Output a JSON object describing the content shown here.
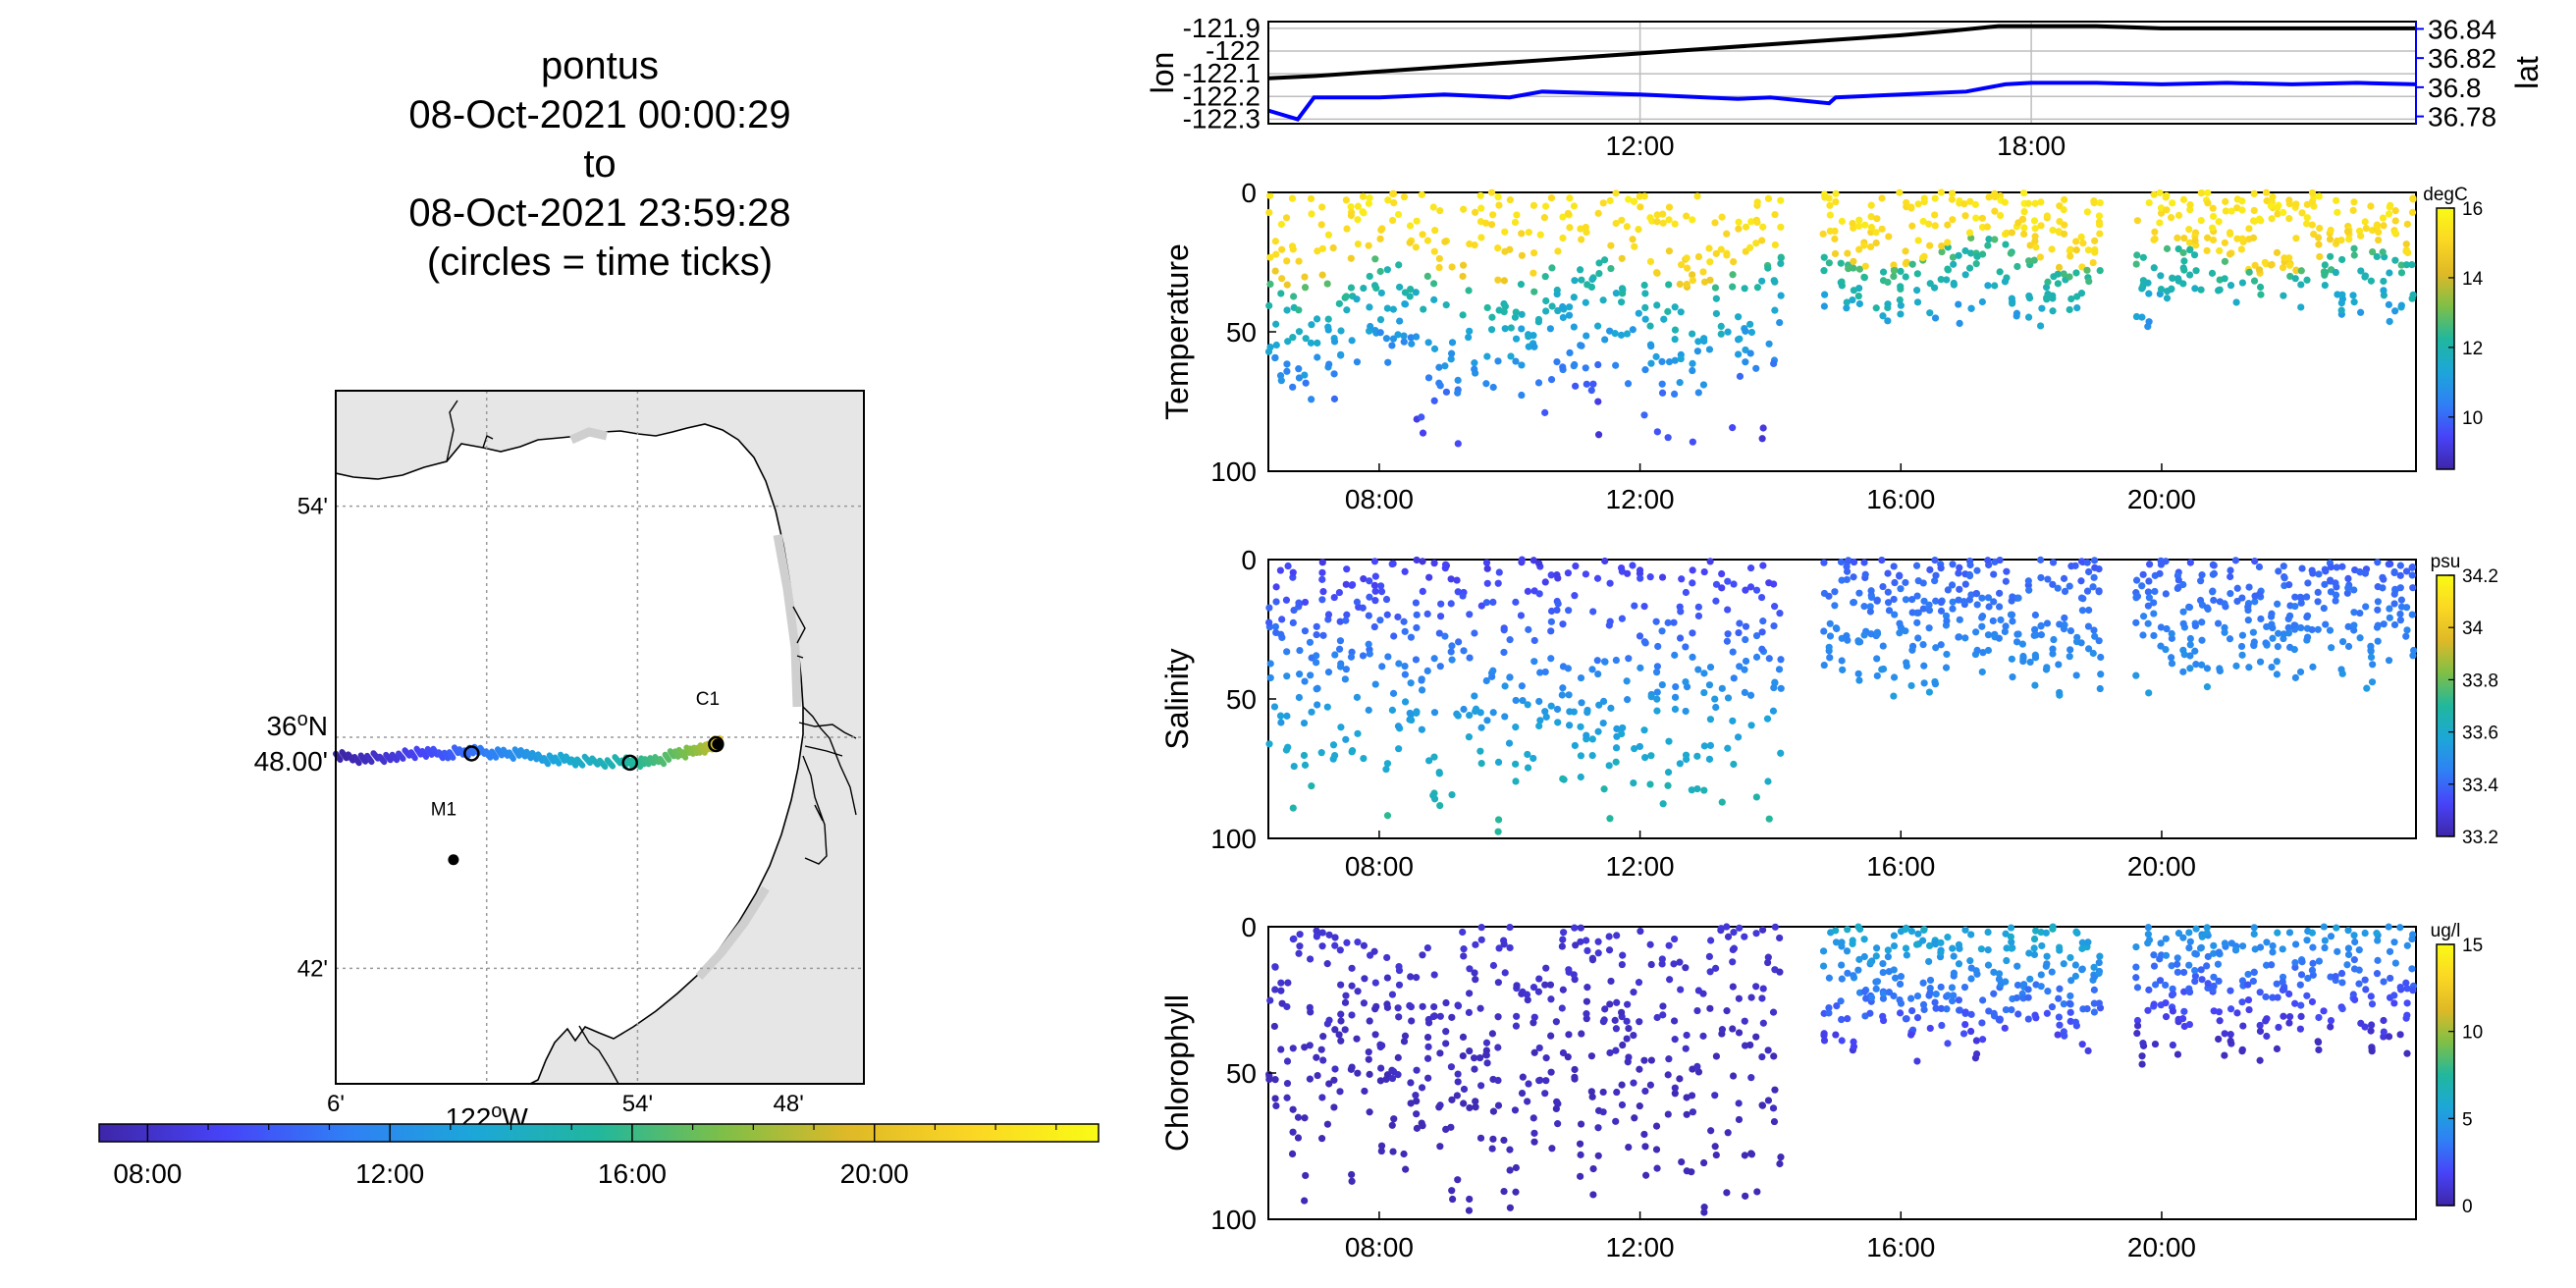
{
  "title": {
    "lines": [
      "pontus",
      "08-Oct-2021 00:00:29",
      "to",
      "08-Oct-2021 23:59:28",
      "(circles = time ticks)"
    ]
  },
  "colors": {
    "lon_line": "#000000",
    "lat_line": "#0000ff",
    "land": "#e6e6e6",
    "water": "#ffffff",
    "parula": [
      "#3e26a8",
      "#4743f8",
      "#2f80f5",
      "#1ca7d8",
      "#21b79d",
      "#7fbf47",
      "#dfb927",
      "#fbd724",
      "#f9fb15"
    ]
  },
  "chart_data": [
    {
      "type": "line",
      "panel": "position",
      "xlim_hours": [
        6.3,
        23.9
      ],
      "x_ticks": [
        "12:00",
        "18:00"
      ],
      "x_tick_hours": [
        12,
        18
      ],
      "series": [
        {
          "name": "lon",
          "axis": "left",
          "x_hours": [
            6.3,
            7.0,
            8.0,
            9.0,
            10.0,
            11.0,
            12.0,
            13.0,
            14.0,
            15.0,
            16.0,
            16.8,
            17.5,
            18.0,
            19.0,
            20.0,
            21.0,
            22.0,
            23.0,
            23.9
          ],
          "values": [
            -122.12,
            -122.11,
            -122.09,
            -122.07,
            -122.05,
            -122.03,
            -122.01,
            -121.99,
            -121.97,
            -121.95,
            -121.93,
            -121.91,
            -121.89,
            -121.89,
            -121.89,
            -121.9,
            -121.9,
            -121.9,
            -121.9,
            -121.9
          ]
        },
        {
          "name": "lat",
          "axis": "right",
          "x_hours": [
            6.3,
            6.75,
            7.0,
            8.0,
            9.0,
            10.0,
            10.5,
            12.0,
            13.5,
            14.0,
            14.9,
            15.0,
            16.0,
            17.0,
            17.6,
            18.0,
            19.0,
            20.0,
            21.0,
            22.0,
            23.0,
            23.9
          ],
          "values": [
            36.784,
            36.778,
            36.793,
            36.793,
            36.795,
            36.793,
            36.797,
            36.795,
            36.792,
            36.793,
            36.789,
            36.793,
            36.795,
            36.797,
            36.802,
            36.803,
            36.803,
            36.802,
            36.803,
            36.802,
            36.803,
            36.802
          ]
        }
      ],
      "ylabel_left": "lon",
      "ylabel_right": "lat",
      "ylim_left": [
        -122.32,
        -121.87
      ],
      "ylim_right": [
        36.775,
        36.845
      ],
      "left_ticks": [
        "-121.9",
        "-122",
        "-122.1",
        "-122.2",
        "-122.3"
      ],
      "left_tick_values": [
        -121.9,
        -122.0,
        -122.1,
        -122.2,
        -122.3
      ],
      "right_ticks": [
        "36.84",
        "36.82",
        "36.8",
        "36.78"
      ],
      "right_tick_values": [
        36.84,
        36.82,
        36.8,
        36.78
      ],
      "grid": true
    },
    {
      "type": "scatter",
      "panel": "temperature",
      "ylabel": "Temperature",
      "ylim": [
        0,
        100
      ],
      "y_reversed": true,
      "y_ticks": [
        "0",
        "50",
        "100"
      ],
      "y_tick_values": [
        0,
        50,
        100
      ],
      "xlim_hours": [
        6.3,
        23.9
      ],
      "x_ticks": [
        "08:00",
        "12:00",
        "16:00",
        "20:00"
      ],
      "x_tick_hours": [
        8,
        12,
        16,
        20
      ],
      "colorbar_label": "degC",
      "clim": [
        8.5,
        16
      ],
      "colorbar_ticks": [
        "16",
        "14",
        "12",
        "10"
      ],
      "colorbar_tick_values": [
        16,
        14,
        12,
        10
      ],
      "profile_hours": [
        6.3,
        14.2,
        14.8,
        19.1,
        19.6,
        23.9
      ],
      "profile_spacing_hours": 0.09,
      "max_depth_by_segment": [
        100,
        50,
        50
      ],
      "thermocline_depth": [
        28,
        22,
        24
      ],
      "surface_value": 15.5,
      "deep_value": 9.0
    },
    {
      "type": "scatter",
      "panel": "salinity",
      "ylabel": "Salinity",
      "ylim": [
        0,
        100
      ],
      "y_reversed": true,
      "y_ticks": [
        "0",
        "50",
        "100"
      ],
      "y_tick_values": [
        0,
        50,
        100
      ],
      "xlim_hours": [
        6.3,
        23.9
      ],
      "x_ticks": [
        "08:00",
        "12:00",
        "16:00",
        "20:00"
      ],
      "x_tick_hours": [
        8,
        12,
        16,
        20
      ],
      "colorbar_label": "psu",
      "clim": [
        33.2,
        34.2
      ],
      "colorbar_ticks": [
        "34.2",
        "34",
        "33.8",
        "33.6",
        "33.4",
        "33.2"
      ],
      "colorbar_tick_values": [
        34.2,
        34.0,
        33.8,
        33.6,
        33.4,
        33.2
      ],
      "profile_hours": [
        6.3,
        14.2,
        14.8,
        19.1,
        19.6,
        23.9
      ],
      "profile_spacing_hours": 0.09,
      "max_depth_by_segment": [
        100,
        50,
        50
      ],
      "surface_value": 33.35,
      "deep_value": 33.65
    },
    {
      "type": "scatter",
      "panel": "chlorophyll",
      "ylabel": "Chlorophyll",
      "ylim": [
        0,
        100
      ],
      "y_reversed": true,
      "y_ticks": [
        "0",
        "50",
        "100"
      ],
      "y_tick_values": [
        0,
        50,
        100
      ],
      "xlim_hours": [
        6.3,
        23.9
      ],
      "x_ticks": [
        "08:00",
        "12:00",
        "16:00",
        "20:00"
      ],
      "x_tick_hours": [
        8,
        12,
        16,
        20
      ],
      "colorbar_label": "ug/l",
      "clim": [
        0,
        15
      ],
      "colorbar_ticks": [
        "15",
        "10",
        "5",
        "0"
      ],
      "colorbar_tick_values": [
        15,
        10,
        5,
        0
      ],
      "profile_hours": [
        6.3,
        14.2,
        14.8,
        19.1,
        19.6,
        23.9
      ],
      "profile_spacing_hours": 0.09,
      "max_depth_by_segment": [
        100,
        50,
        50
      ],
      "surface_value": [
        1.0,
        6.0,
        5.0
      ],
      "deep_value": 0.5
    },
    {
      "type": "map",
      "panel": "track",
      "lon_lim": [
        -122.1,
        -121.75
      ],
      "lat_lim": [
        36.65,
        36.95
      ],
      "lon_ticks": [
        "6'",
        "54'",
        "48'"
      ],
      "lon_tick_values": [
        -122.1,
        -121.9,
        -121.8
      ],
      "lon_gridlines": [
        -122.0,
        -121.9
      ],
      "lon_center_label": [
        "122",
        "o",
        "W"
      ],
      "lat_ticks": [
        "54'",
        "42'"
      ],
      "lat_tick_values": [
        36.9,
        36.7
      ],
      "lat_gridlines": [
        36.9,
        36.8,
        36.7
      ],
      "lat_center_label": [
        "36",
        "o",
        "N",
        "48.00'"
      ],
      "stations": [
        {
          "name": "C1",
          "lon": -121.847,
          "lat": 36.797
        },
        {
          "name": "M1",
          "lon": -122.022,
          "lat": 36.747
        }
      ],
      "track": {
        "hours": [
          7.0,
          8.0,
          9.0,
          10.0,
          11.0,
          12.0,
          13.0,
          14.0,
          15.0,
          16.0,
          17.0,
          18.0,
          19.0,
          20.0,
          21.0
        ],
        "lon": [
          -122.1,
          -122.075,
          -122.05,
          -122.028,
          -122.008,
          -121.985,
          -121.962,
          -121.94,
          -121.91,
          -121.895,
          -121.875,
          -121.86,
          -121.85,
          -121.847,
          -121.845
        ],
        "lat": [
          36.792,
          36.791,
          36.793,
          36.793,
          36.794,
          36.793,
          36.791,
          36.79,
          36.789,
          36.789,
          36.792,
          36.794,
          36.797,
          36.797,
          36.798
        ]
      },
      "time_tick_circles": [
        {
          "lon": -122.01,
          "lat": 36.793
        },
        {
          "lon": -121.905,
          "lat": 36.789
        },
        {
          "lon": -121.848,
          "lat": 36.797
        }
      ]
    },
    {
      "type": "colorbar",
      "panel": "time",
      "xlim_hours": [
        7.2,
        23.7
      ],
      "x_ticks": [
        "08:00",
        "12:00",
        "16:00",
        "20:00"
      ],
      "x_tick_hours": [
        8,
        12,
        16,
        20
      ]
    }
  ]
}
